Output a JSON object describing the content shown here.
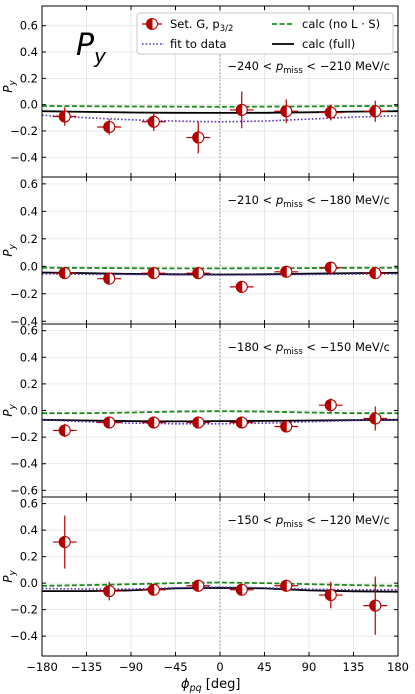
{
  "figure": {
    "big_label": "P",
    "big_label_sub": "y",
    "x_axis_label": "ϕ",
    "x_axis_label_sub": "pq",
    "x_axis_unit": " [deg]",
    "y_axis_label": "P",
    "y_axis_label_sub": "y"
  },
  "legend": {
    "data_label": "Set. G, p",
    "data_label_sub": "3/2",
    "fit_label": "fit to data",
    "nols_label": "calc (no L · S)",
    "full_label": "calc (full)"
  },
  "colors": {
    "data": "#b30000",
    "fit": "#5b2fbf",
    "nols": "#1a8a1a",
    "full": "#000000",
    "grid": "#e4e4e4",
    "zero_line": "#888888"
  },
  "chart_data": [
    {
      "type": "scatter",
      "annotation": "−240 < p_miss < −210 MeV/c",
      "ann_pre": "−240 < ",
      "ann_p": "p",
      "ann_sub": "miss",
      "ann_post": " < −210 MeV/c",
      "xlim": [
        -180,
        180
      ],
      "ylim": [
        -0.55,
        0.75
      ],
      "yticks": [
        -0.4,
        -0.2,
        0.0,
        0.2,
        0.4,
        0.6
      ],
      "ytick_labels": [
        "−0.4",
        "−0.2",
        "0.0",
        "0.2",
        "0.4",
        "0.6"
      ],
      "grid": true,
      "data": [
        {
          "x": -157,
          "y": -0.09,
          "xerr": 12,
          "yerr": 0.07
        },
        {
          "x": -112,
          "y": -0.17,
          "xerr": 12,
          "yerr": 0.06
        },
        {
          "x": -67,
          "y": -0.13,
          "xerr": 12,
          "yerr": 0.07
        },
        {
          "x": -22,
          "y": -0.25,
          "xerr": 12,
          "yerr": 0.12
        },
        {
          "x": 22,
          "y": -0.04,
          "xerr": 12,
          "yerr": 0.14
        },
        {
          "x": 67,
          "y": -0.05,
          "xerr": 12,
          "yerr": 0.09
        },
        {
          "x": 112,
          "y": -0.06,
          "xerr": 12,
          "yerr": 0.06
        },
        {
          "x": 157,
          "y": -0.05,
          "xerr": 12,
          "yerr": 0.08
        }
      ],
      "fit": {
        "x": [
          -180,
          -135,
          -90,
          -45,
          0,
          45,
          90,
          135,
          180
        ],
        "y": [
          -0.08,
          -0.1,
          -0.115,
          -0.125,
          -0.13,
          -0.125,
          -0.11,
          -0.095,
          -0.085
        ]
      },
      "nols": {
        "x": [
          -180,
          -135,
          -90,
          -45,
          0,
          45,
          90,
          135,
          180
        ],
        "y": [
          -0.01,
          -0.012,
          -0.014,
          -0.015,
          -0.016,
          -0.015,
          -0.013,
          -0.011,
          -0.01
        ]
      },
      "full": {
        "x": [
          -180,
          -135,
          -90,
          -45,
          0,
          45,
          90,
          135,
          180
        ],
        "y": [
          -0.05,
          -0.055,
          -0.06,
          -0.062,
          -0.063,
          -0.062,
          -0.058,
          -0.053,
          -0.05
        ]
      }
    },
    {
      "type": "scatter",
      "annotation": "−210 < p_miss < −180 MeV/c",
      "ann_pre": "−210 < ",
      "ann_p": "p",
      "ann_sub": "miss",
      "ann_post": " < −180 MeV/c",
      "xlim": [
        -180,
        180
      ],
      "ylim": [
        -0.42,
        0.65
      ],
      "yticks": [
        -0.4,
        -0.2,
        0.0,
        0.2,
        0.4,
        0.6
      ],
      "ytick_labels": [
        "−0.4",
        "−0.2",
        "0.0",
        "0.2",
        "0.4",
        "0.6"
      ],
      "grid": true,
      "data": [
        {
          "x": -157,
          "y": -0.05,
          "xerr": 12,
          "yerr": 0.03
        },
        {
          "x": -112,
          "y": -0.09,
          "xerr": 12,
          "yerr": 0.03
        },
        {
          "x": -67,
          "y": -0.05,
          "xerr": 12,
          "yerr": 0.03
        },
        {
          "x": -22,
          "y": -0.05,
          "xerr": 12,
          "yerr": 0.03
        },
        {
          "x": 22,
          "y": -0.15,
          "xerr": 12,
          "yerr": 0.03
        },
        {
          "x": 67,
          "y": -0.04,
          "xerr": 12,
          "yerr": 0.03
        },
        {
          "x": 112,
          "y": -0.01,
          "xerr": 12,
          "yerr": 0.03
        },
        {
          "x": 157,
          "y": -0.05,
          "xerr": 12,
          "yerr": 0.03
        }
      ],
      "fit": {
        "x": [
          -180,
          -135,
          -90,
          -45,
          0,
          45,
          90,
          135,
          180
        ],
        "y": [
          -0.055,
          -0.058,
          -0.06,
          -0.062,
          -0.063,
          -0.062,
          -0.06,
          -0.057,
          -0.055
        ]
      },
      "nols": {
        "x": [
          -180,
          -135,
          -90,
          -45,
          0,
          45,
          90,
          135,
          180
        ],
        "y": [
          -0.01,
          -0.012,
          -0.014,
          -0.015,
          -0.015,
          -0.014,
          -0.013,
          -0.011,
          -0.01
        ]
      },
      "full": {
        "x": [
          -180,
          -135,
          -90,
          -45,
          0,
          45,
          90,
          135,
          180
        ],
        "y": [
          -0.045,
          -0.05,
          -0.055,
          -0.058,
          -0.06,
          -0.058,
          -0.054,
          -0.05,
          -0.047
        ]
      }
    },
    {
      "type": "scatter",
      "annotation": "−180 < p_miss < −150 MeV/c",
      "ann_pre": "−180 < ",
      "ann_p": "p",
      "ann_sub": "miss",
      "ann_post": " < −150 MeV/c",
      "xlim": [
        -180,
        180
      ],
      "ylim": [
        -0.65,
        0.65
      ],
      "yticks": [
        -0.6,
        -0.4,
        -0.2,
        0.0,
        0.2,
        0.4,
        0.6
      ],
      "ytick_labels": [
        "−0.6",
        "−0.4",
        "−0.2",
        "0.0",
        "0.2",
        "0.4",
        "0.6"
      ],
      "grid": true,
      "data": [
        {
          "x": -157,
          "y": -0.15,
          "xerr": 12,
          "yerr": 0.05
        },
        {
          "x": -112,
          "y": -0.09,
          "xerr": 12,
          "yerr": 0.03
        },
        {
          "x": -67,
          "y": -0.09,
          "xerr": 12,
          "yerr": 0.03
        },
        {
          "x": -22,
          "y": -0.09,
          "xerr": 12,
          "yerr": 0.03
        },
        {
          "x": 22,
          "y": -0.09,
          "xerr": 12,
          "yerr": 0.03
        },
        {
          "x": 67,
          "y": -0.12,
          "xerr": 12,
          "yerr": 0.04
        },
        {
          "x": 112,
          "y": 0.04,
          "xerr": 12,
          "yerr": 0.05
        },
        {
          "x": 157,
          "y": -0.06,
          "xerr": 12,
          "yerr": 0.09
        }
      ],
      "fit": {
        "x": [
          -180,
          -135,
          -90,
          -45,
          0,
          45,
          90,
          135,
          180
        ],
        "y": [
          -0.07,
          -0.085,
          -0.095,
          -0.1,
          -0.1,
          -0.095,
          -0.085,
          -0.075,
          -0.07
        ]
      },
      "nols": {
        "x": [
          -180,
          -135,
          -90,
          -45,
          0,
          45,
          90,
          135,
          180
        ],
        "y": [
          -0.02,
          -0.02,
          -0.015,
          -0.008,
          -0.005,
          -0.008,
          -0.015,
          -0.02,
          -0.02
        ]
      },
      "full": {
        "x": [
          -180,
          -135,
          -90,
          -45,
          0,
          45,
          90,
          135,
          180
        ],
        "y": [
          -0.07,
          -0.075,
          -0.08,
          -0.082,
          -0.08,
          -0.078,
          -0.075,
          -0.072,
          -0.07
        ]
      }
    },
    {
      "type": "scatter",
      "annotation": "−150 < p_miss < −120 MeV/c",
      "ann_pre": "−150 < ",
      "ann_p": "p",
      "ann_sub": "miss",
      "ann_post": " < −120 MeV/c",
      "xlim": [
        -180,
        180
      ],
      "ylim": [
        -0.55,
        0.65
      ],
      "yticks": [
        -0.4,
        -0.2,
        0.0,
        0.2,
        0.4,
        0.6
      ],
      "ytick_labels": [
        "−0.4",
        "−0.2",
        "0.0",
        "0.2",
        "0.4",
        "0.6"
      ],
      "xticks": [
        -180,
        -135,
        -90,
        -45,
        0,
        45,
        90,
        135,
        180
      ],
      "xtick_labels": [
        "−180",
        "−135",
        "−90",
        "−45",
        "0",
        "45",
        "90",
        "135",
        "180"
      ],
      "grid": true,
      "data": [
        {
          "x": -157,
          "y": 0.31,
          "xerr": 12,
          "yerr": 0.2
        },
        {
          "x": -112,
          "y": -0.06,
          "xerr": 12,
          "yerr": 0.07
        },
        {
          "x": -67,
          "y": -0.05,
          "xerr": 12,
          "yerr": 0.03
        },
        {
          "x": -22,
          "y": -0.02,
          "xerr": 12,
          "yerr": 0.03
        },
        {
          "x": 22,
          "y": -0.05,
          "xerr": 12,
          "yerr": 0.03
        },
        {
          "x": 67,
          "y": -0.02,
          "xerr": 12,
          "yerr": 0.03
        },
        {
          "x": 112,
          "y": -0.09,
          "xerr": 12,
          "yerr": 0.1
        },
        {
          "x": 157,
          "y": -0.17,
          "xerr": 12,
          "yerr": 0.22
        }
      ],
      "fit": {
        "x": [
          -180,
          -135,
          -90,
          -45,
          0,
          45,
          90,
          135,
          180
        ],
        "y": [
          -0.04,
          -0.045,
          -0.045,
          -0.035,
          -0.03,
          -0.035,
          -0.045,
          -0.05,
          -0.05
        ]
      },
      "nols": {
        "x": [
          -180,
          -135,
          -90,
          -45,
          0,
          45,
          90,
          135,
          180
        ],
        "y": [
          -0.02,
          -0.015,
          -0.008,
          0.0,
          0.005,
          0.0,
          -0.008,
          -0.015,
          -0.02
        ]
      },
      "full": {
        "x": [
          -180,
          -135,
          -90,
          -45,
          0,
          45,
          90,
          135,
          180
        ],
        "y": [
          -0.06,
          -0.06,
          -0.055,
          -0.04,
          -0.035,
          -0.04,
          -0.055,
          -0.062,
          -0.065
        ]
      }
    }
  ]
}
